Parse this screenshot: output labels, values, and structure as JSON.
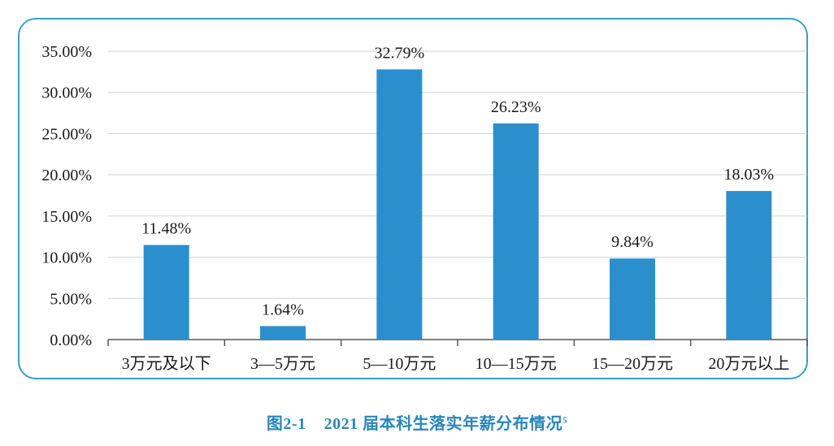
{
  "chart_data": {
    "type": "bar",
    "categories": [
      "3万元及以下",
      "3—5万元",
      "5—10万元",
      "10—15万元",
      "15—20万元",
      "20万元以上"
    ],
    "values": [
      11.48,
      1.64,
      32.79,
      26.23,
      9.84,
      18.03
    ],
    "data_labels": [
      "11.48%",
      "1.64%",
      "32.79%",
      "26.23%",
      "9.84%",
      "18.03%"
    ],
    "y_ticks": [
      "0.00%",
      "5.00%",
      "10.00%",
      "15.00%",
      "20.00%",
      "25.00%",
      "30.00%",
      "35.00%"
    ],
    "ylim": [
      0,
      35
    ],
    "grid": true,
    "bar_color": "#2b8fcd",
    "gridline_color": "#d2d2d2",
    "frame_color": "#3b9ec4"
  },
  "caption": {
    "number": "图2-1",
    "title": "2021 届本科生落实年薪分布情况",
    "footnote_mark": "5"
  }
}
